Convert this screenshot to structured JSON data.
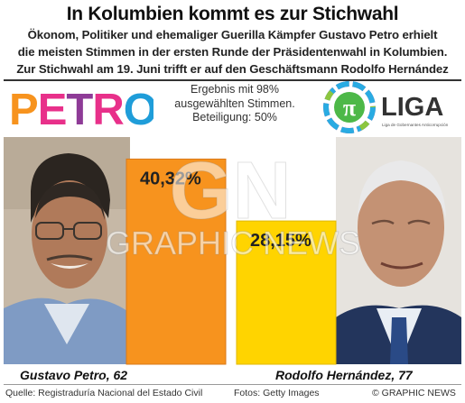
{
  "title": "In Kolumbien kommt es zur Stichwahl",
  "subtitle_lines": [
    "Ökonom, Politiker und ehemaliger Guerilla Kämpfer Gustavo Petro erhielt",
    "die meisten Stimmen in der ersten Runde der Präsidentenwahl in Kolumbien.",
    "Zur Stichwahl am 19. Juni trifft er auf den Geschäftsmann Rodolfo Hernández"
  ],
  "notes": [
    "Ergebnis mit 98%",
    "ausgewählten Stimmen.",
    "Beteiligung: 50%"
  ],
  "logos": {
    "petro": "PETRO",
    "liga_symbol": "π",
    "liga": "LIGA",
    "liga_tagline": "Liga de Gobernantes Anticorrupción"
  },
  "captions": [
    "Gustavo Petro, 62",
    "Rodolfo Hernández, 77"
  ],
  "footer": {
    "source": "Quelle: Registraduría Nacional del Estado Civil",
    "photos": "Fotos: Getty Images",
    "copyright": "© GRAPHIC NEWS"
  },
  "watermark": {
    "mark": "GN",
    "text": "GRAPHIC NEWS"
  },
  "colors": {
    "petro_bar": "#F7931E",
    "hernandez_bar": "#FFD400",
    "petro_logo": [
      "#F7931E",
      "#E8308A",
      "#8E3B97",
      "#E8308A",
      "#1F9DD9"
    ]
  },
  "chart_data": {
    "type": "bar",
    "categories": [
      "Gustavo Petro",
      "Rodolfo Hernández"
    ],
    "values": [
      40.32,
      28.15
    ],
    "value_labels": [
      "40,32%",
      "28,15%"
    ],
    "unit": "%",
    "ylim": [
      0,
      45
    ],
    "grid": false,
    "legend": "none"
  }
}
